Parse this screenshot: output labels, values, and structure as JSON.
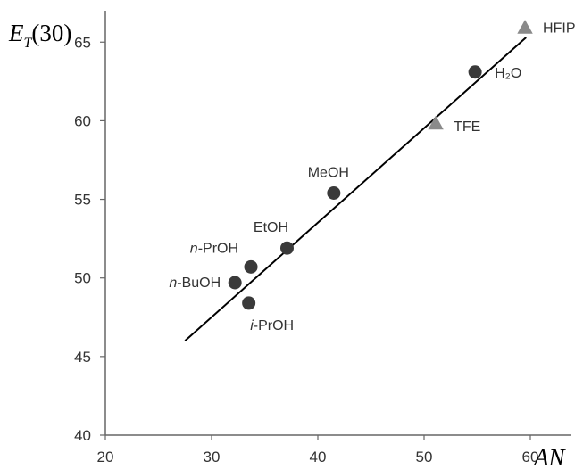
{
  "chart_data": {
    "type": "scatter",
    "ylabel": "E_T(30)",
    "xlabel": "AN",
    "xlim": [
      20,
      60
    ],
    "ylim": [
      40,
      67
    ],
    "x_ticks": [
      "20",
      "30",
      "40",
      "50",
      "60"
    ],
    "y_ticks": [
      "40",
      "45",
      "50",
      "55",
      "60",
      "65"
    ],
    "grid": false,
    "series": [
      {
        "marker": "circle",
        "color": "#3a3a3a",
        "points": [
          {
            "label": "H₂O",
            "x": 54.8,
            "y": 63.1
          },
          {
            "label": "MeOH",
            "x": 41.5,
            "y": 55.4
          },
          {
            "label": "EtOH",
            "x": 37.1,
            "y": 51.9
          },
          {
            "label": "n-PrOH",
            "x": 33.7,
            "y": 50.7
          },
          {
            "label": "n-BuOH",
            "x": 32.2,
            "y": 49.7
          },
          {
            "label": "i-PrOH",
            "x": 33.5,
            "y": 48.4
          }
        ]
      },
      {
        "marker": "triangle",
        "color": "#8a8a8a",
        "points": [
          {
            "label": "HFIP",
            "x": 59.5,
            "y": 65.9
          },
          {
            "label": "TFE",
            "x": 51.1,
            "y": 59.8
          }
        ]
      }
    ],
    "fit_line": {
      "x": [
        27.5,
        59.6
      ],
      "y": [
        46.0,
        65.3
      ],
      "color": "#000000"
    }
  }
}
